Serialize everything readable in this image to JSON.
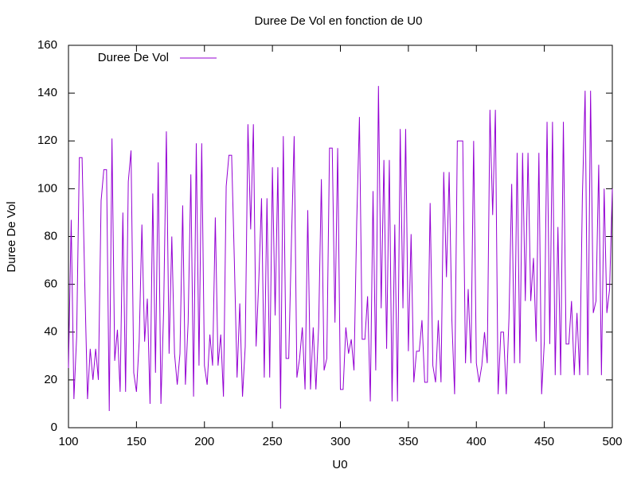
{
  "chart_data": {
    "type": "line",
    "title": "Duree De Vol en fonction de U0",
    "xlabel": "U0",
    "ylabel": "Duree De Vol",
    "legend": "top-left",
    "grid": false,
    "xlim": [
      100,
      500
    ],
    "xticks": [
      100,
      150,
      200,
      250,
      300,
      350,
      400,
      450,
      500
    ],
    "ylim": [
      0,
      160
    ],
    "yticks": [
      0,
      20,
      40,
      60,
      80,
      100,
      120,
      140,
      160
    ],
    "x": [
      100,
      102,
      104,
      106,
      108,
      110,
      112,
      114,
      116,
      118,
      120,
      122,
      124,
      126,
      128,
      130,
      132,
      134,
      136,
      138,
      140,
      142,
      144,
      146,
      148,
      150,
      152,
      154,
      156,
      158,
      160,
      162,
      164,
      166,
      168,
      170,
      172,
      174,
      176,
      178,
      180,
      182,
      184,
      186,
      188,
      190,
      192,
      194,
      196,
      198,
      200,
      202,
      204,
      206,
      208,
      210,
      212,
      214,
      216,
      218,
      220,
      222,
      224,
      226,
      228,
      230,
      232,
      234,
      236,
      238,
      240,
      242,
      244,
      246,
      248,
      250,
      252,
      254,
      256,
      258,
      260,
      262,
      264,
      266,
      268,
      270,
      272,
      274,
      276,
      278,
      280,
      282,
      284,
      286,
      288,
      290,
      292,
      294,
      296,
      298,
      300,
      302,
      304,
      306,
      308,
      310,
      312,
      314,
      316,
      318,
      320,
      322,
      324,
      326,
      328,
      330,
      332,
      334,
      336,
      338,
      340,
      342,
      344,
      346,
      348,
      350,
      352,
      354,
      356,
      358,
      360,
      362,
      364,
      366,
      368,
      370,
      372,
      374,
      376,
      378,
      380,
      382,
      384,
      386,
      388,
      390,
      392,
      394,
      396,
      398,
      400,
      402,
      404,
      406,
      408,
      410,
      412,
      414,
      416,
      418,
      420,
      422,
      424,
      426,
      428,
      430,
      432,
      434,
      436,
      438,
      440,
      442,
      444,
      446,
      448,
      450,
      452,
      454,
      456,
      458,
      460,
      462,
      464,
      466,
      468,
      470,
      472,
      474,
      476,
      478,
      480,
      482,
      484,
      486,
      488,
      490,
      492,
      494,
      496,
      498,
      500
    ],
    "series": [
      {
        "name": "Duree De Vol",
        "color": "#9400d3",
        "values": [
          25,
          87,
          12,
          38,
          113,
          113,
          60,
          12,
          33,
          20,
          33,
          20,
          95,
          108,
          108,
          7,
          121,
          28,
          41,
          15,
          90,
          15,
          103,
          116,
          23,
          15,
          36,
          85,
          36,
          54,
          10,
          98,
          23,
          111,
          10,
          49,
          124,
          31,
          80,
          31,
          18,
          31,
          93,
          18,
          44,
          106,
          13,
          119,
          26,
          119,
          26,
          18,
          39,
          26,
          88,
          26,
          39,
          13,
          101,
          114,
          114,
          70,
          21,
          52,
          13,
          34,
          127,
          83,
          127,
          34,
          62,
          96,
          21,
          96,
          21,
          109,
          47,
          109,
          8,
          122,
          29,
          29,
          78,
          122,
          21,
          29,
          42,
          16,
          91,
          16,
          42,
          16,
          42,
          104,
          24,
          29,
          117,
          117,
          44,
          117,
          16,
          16,
          42,
          31,
          37,
          24,
          86,
          130,
          37,
          37,
          55,
          11,
          99,
          24,
          143,
          50,
          112,
          33,
          112,
          11,
          85,
          11,
          125,
          50,
          125,
          32,
          81,
          19,
          32,
          32,
          45,
          19,
          19,
          94,
          26,
          19,
          45,
          19,
          107,
          63,
          107,
          45,
          14,
          120,
          120,
          120,
          27,
          58,
          27,
          120,
          27,
          19,
          26,
          40,
          27,
          133,
          89,
          133,
          14,
          40,
          40,
          14,
          46,
          102,
          27,
          115,
          27,
          115,
          53,
          115,
          53,
          71,
          36,
          115,
          14,
          36,
          128,
          35,
          128,
          22,
          84,
          22,
          128,
          35,
          35,
          53,
          22,
          48,
          22,
          97,
          141,
          22,
          141,
          48,
          53,
          110,
          22,
          100,
          48,
          58,
          100
        ]
      }
    ]
  }
}
